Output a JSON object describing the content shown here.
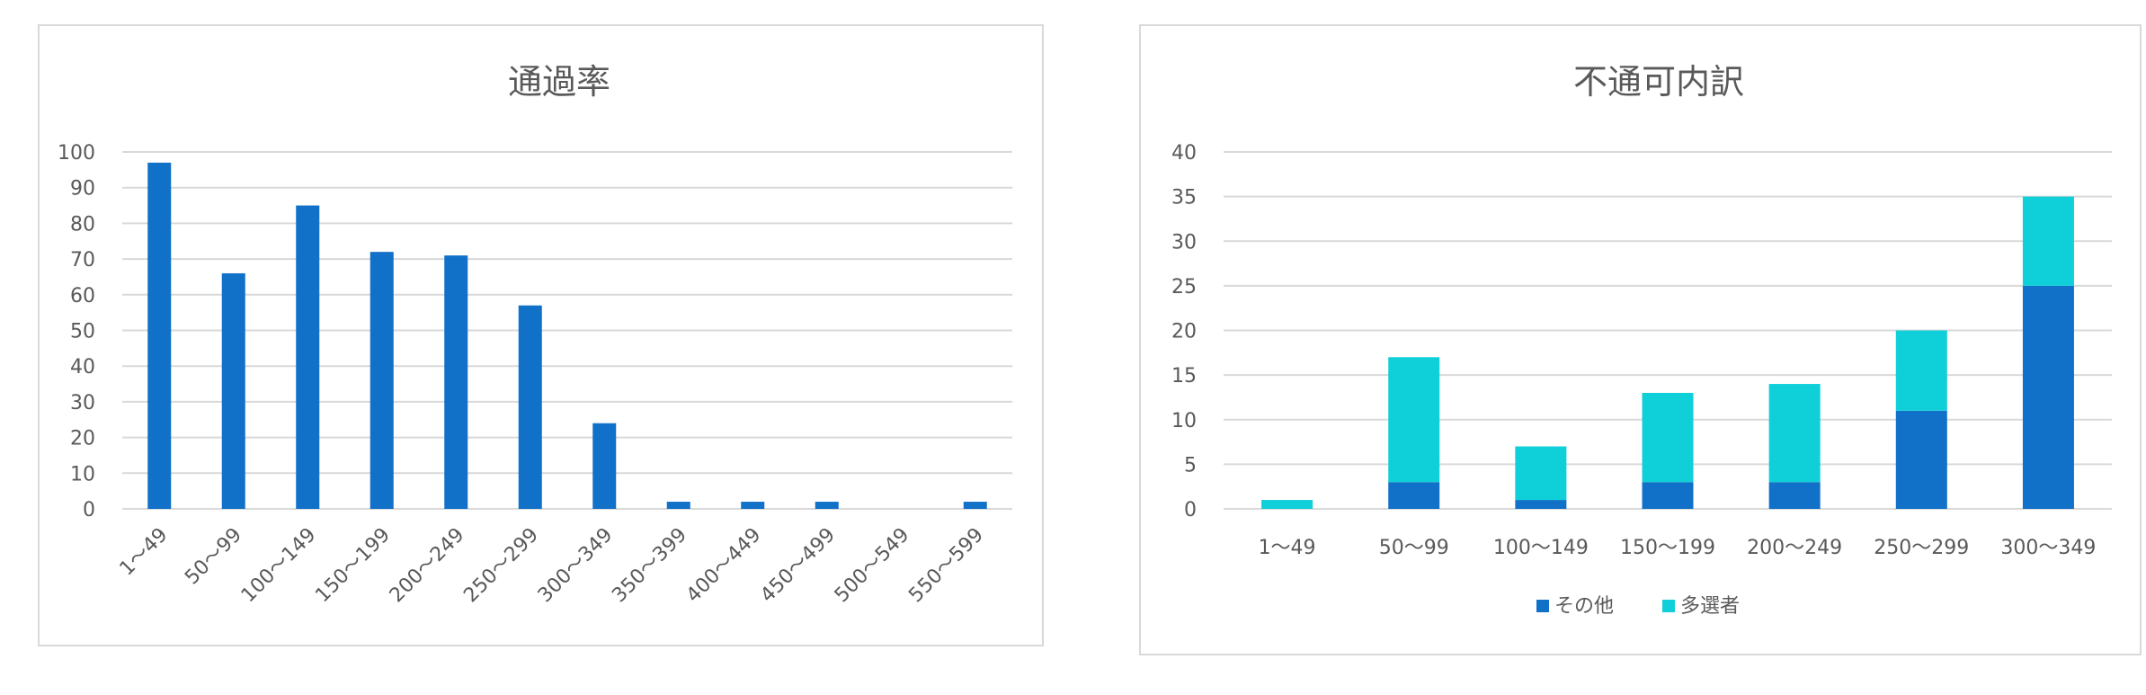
{
  "chart_data": [
    {
      "type": "bar",
      "title": "通過率",
      "categories": [
        "1～49",
        "50～99",
        "100～149",
        "150～199",
        "200～249",
        "250～299",
        "300～349",
        "350～399",
        "400～449",
        "450～499",
        "500～549",
        "550～599"
      ],
      "values": [
        97,
        66,
        85,
        72,
        71,
        57,
        24,
        2,
        2,
        2,
        0,
        2
      ],
      "ylim": [
        0,
        100
      ],
      "yticks": [
        0,
        10,
        20,
        30,
        40,
        50,
        60,
        70,
        80,
        90,
        100
      ],
      "grid": true,
      "color": "#1170c8"
    },
    {
      "type": "bar",
      "stacked": true,
      "title": "不通可内訳",
      "categories": [
        "1～49",
        "50～99",
        "100～149",
        "150～199",
        "200～249",
        "250～299",
        "300～349"
      ],
      "series": [
        {
          "name": "その他",
          "values": [
            0,
            3,
            1,
            3,
            3,
            11,
            25
          ],
          "color": "#1170c8"
        },
        {
          "name": "多選者",
          "values": [
            1,
            14,
            6,
            10,
            11,
            9,
            10
          ],
          "color": "#0fcfd8"
        }
      ],
      "ylim": [
        0,
        40
      ],
      "yticks": [
        0,
        5,
        10,
        15,
        20,
        25,
        30,
        35,
        40
      ],
      "grid": true,
      "legend_position": "bottom"
    }
  ]
}
